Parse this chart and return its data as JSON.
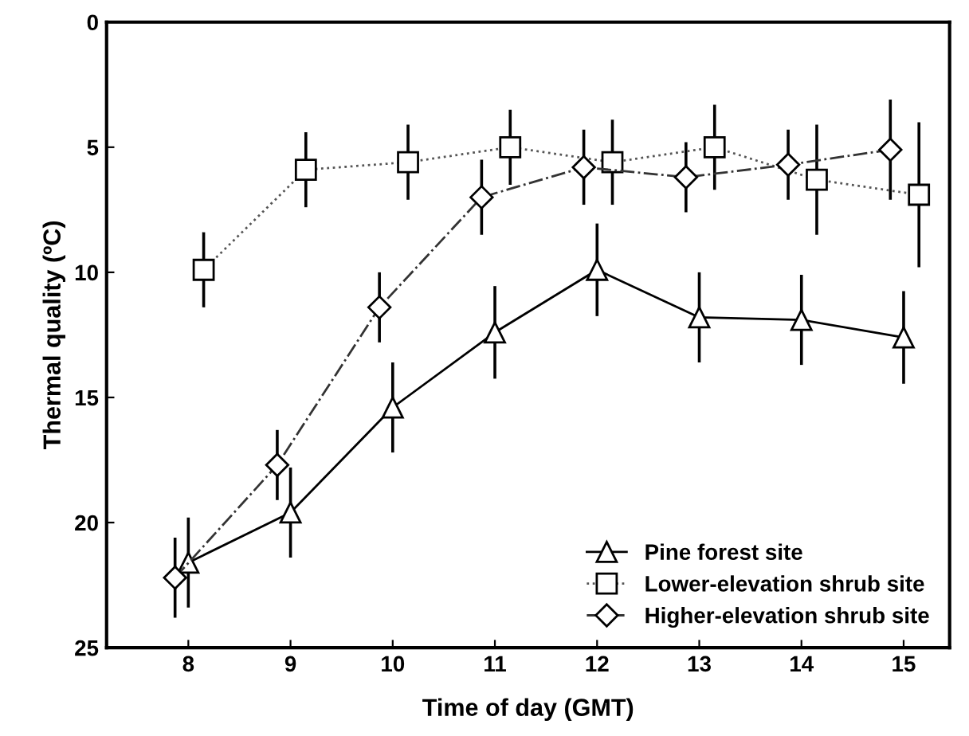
{
  "chart_data": {
    "type": "line",
    "xlabel": "Time of day (GMT)",
    "ylabel": "Thermal quality (ºC)",
    "xlim": [
      7.2,
      15.45
    ],
    "xticks": [
      8,
      9,
      10,
      11,
      12,
      13,
      14,
      15
    ],
    "ylim": [
      25,
      0
    ],
    "yticks": [
      0,
      5,
      10,
      15,
      20,
      25
    ],
    "grid": false,
    "legend": "lower right",
    "series": [
      {
        "name": "Pine forest site",
        "color": "#000000",
        "marker": "triangle",
        "line_style": "solid",
        "x": [
          8,
          9,
          10,
          11,
          12,
          13,
          14,
          15
        ],
        "values": [
          21.6,
          19.6,
          15.4,
          12.4,
          9.9,
          11.8,
          11.9,
          12.6
        ],
        "errors": [
          1.8,
          1.8,
          1.8,
          1.85,
          1.85,
          1.8,
          1.8,
          1.85
        ]
      },
      {
        "name": "Lower-elevation shrub site",
        "color": "#555555",
        "marker": "square",
        "line_style": "dotted",
        "x": [
          8.15,
          9.15,
          10.15,
          11.15,
          12.15,
          13.15,
          14.15,
          15.15
        ],
        "values": [
          9.9,
          5.9,
          5.6,
          5.0,
          5.6,
          5.0,
          6.3,
          6.9
        ],
        "errors": [
          1.5,
          1.5,
          1.5,
          1.5,
          1.7,
          1.7,
          2.2,
          2.9
        ]
      },
      {
        "name": "Higher-elevation shrub site",
        "color": "#333333",
        "marker": "diamond",
        "line_style": "dashdot",
        "x": [
          7.87,
          8.87,
          9.87,
          10.87,
          11.87,
          12.87,
          13.87,
          14.87
        ],
        "values": [
          22.2,
          17.7,
          11.4,
          7.0,
          5.8,
          6.2,
          5.7,
          5.1
        ],
        "errors": [
          1.6,
          1.4,
          1.4,
          1.5,
          1.5,
          1.4,
          1.4,
          2.0
        ]
      }
    ]
  }
}
